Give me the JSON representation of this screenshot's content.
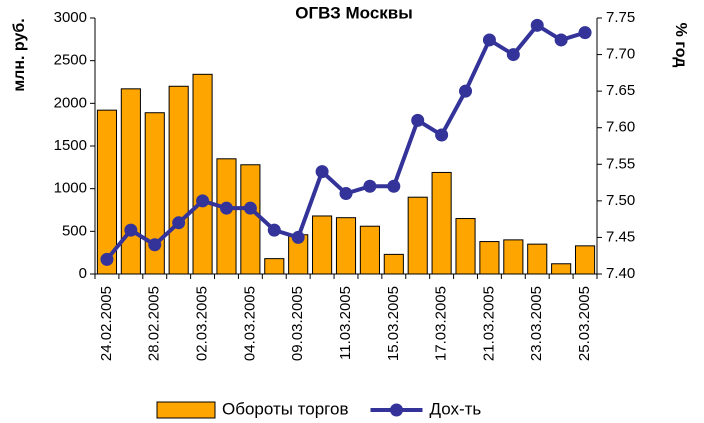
{
  "chart_data": {
    "type": "bar_line",
    "title": "ОГВЗ Москвы",
    "y_label": "млн. руб.",
    "y2_label": "% год",
    "categories": [
      "24.02.2005",
      null,
      "28.02.2005",
      null,
      "02.03.2005",
      null,
      "04.03.2005",
      null,
      "09.03.2005",
      null,
      "11.03.2005",
      null,
      "15.03.2005",
      null,
      "17.03.2005",
      null,
      "21.03.2005",
      null,
      "23.03.2005",
      null,
      "25.03.2005"
    ],
    "series": [
      {
        "name": "Обороты торгов",
        "type": "bar",
        "color": "#ffa500",
        "values": [
          1920,
          2170,
          1890,
          2200,
          2340,
          1350,
          1280,
          180,
          460,
          680,
          660,
          560,
          230,
          900,
          1190,
          650,
          380,
          400,
          350,
          120,
          330
        ]
      },
      {
        "name": "Дох-ть",
        "type": "line",
        "axis": "y2",
        "color": "#333399",
        "values": [
          7.42,
          7.46,
          7.44,
          7.47,
          7.5,
          7.49,
          7.49,
          7.46,
          7.45,
          7.54,
          7.51,
          7.52,
          7.52,
          7.61,
          7.59,
          7.65,
          7.72,
          7.7,
          7.74,
          7.72,
          7.73
        ]
      }
    ],
    "ylim": [
      0,
      3000
    ],
    "yticks": [
      0,
      500,
      1000,
      1500,
      2000,
      2500,
      3000
    ],
    "y2lim": [
      7.4,
      7.75
    ],
    "y2ticks": [
      {
        "value": 7.4,
        "label": "7.40"
      },
      7.45,
      {
        "value": 7.5,
        "label": "7.50"
      },
      7.55,
      {
        "value": 7.6,
        "label": "7.60"
      },
      7.65,
      {
        "value": 7.7,
        "label": "7.70"
      },
      7.75
    ],
    "legend": "bottom"
  }
}
